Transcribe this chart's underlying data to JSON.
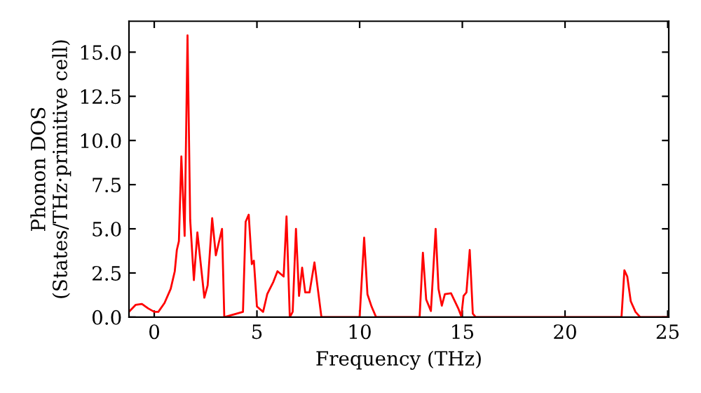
{
  "chart_data": {
    "type": "line",
    "xlabel": "Frequency (THz)",
    "ylabel": "Phonon DOS\n(States/THz·primitive cell)",
    "series": [
      {
        "color": "#ff0000",
        "x": [
          -1.23,
          -0.9,
          -0.6,
          -0.3,
          0.0,
          0.2,
          0.5,
          0.8,
          1.0,
          1.1,
          1.2,
          1.32,
          1.48,
          1.62,
          1.75,
          1.93,
          2.1,
          2.44,
          2.6,
          2.82,
          3.0,
          3.3,
          3.41,
          4.32,
          4.45,
          4.6,
          4.75,
          4.85,
          5.0,
          5.3,
          5.5,
          5.8,
          6.0,
          6.3,
          6.44,
          6.6,
          6.74,
          6.9,
          7.05,
          7.2,
          7.35,
          7.56,
          7.8,
          8.14,
          10.0,
          10.22,
          10.38,
          10.58,
          10.8,
          12.92,
          13.08,
          13.24,
          13.47,
          13.7,
          13.84,
          14.0,
          14.15,
          14.45,
          14.8,
          14.95,
          15.06,
          15.2,
          15.36,
          15.51,
          15.65,
          22.75,
          22.89,
          23.03,
          23.2,
          23.43,
          23.66,
          25.05
        ],
        "values": [
          0.3,
          0.7,
          0.75,
          0.5,
          0.3,
          0.3,
          0.8,
          1.6,
          2.6,
          3.8,
          4.3,
          9.1,
          4.6,
          15.95,
          5.5,
          2.1,
          4.8,
          1.1,
          1.8,
          5.6,
          3.5,
          5.0,
          0.0,
          0.3,
          5.4,
          5.8,
          3.0,
          3.2,
          0.6,
          0.3,
          1.3,
          2.0,
          2.6,
          2.3,
          5.7,
          0.0,
          0.3,
          5.0,
          1.2,
          2.8,
          1.4,
          1.4,
          3.1,
          0.0,
          0.0,
          4.5,
          1.3,
          0.6,
          0.0,
          0.0,
          3.65,
          1.0,
          0.35,
          5.0,
          1.6,
          0.65,
          1.3,
          1.35,
          0.5,
          0.05,
          1.2,
          1.4,
          3.8,
          0.2,
          0.0,
          0.0,
          2.65,
          2.3,
          0.9,
          0.3,
          0.0,
          0.0
        ]
      }
    ],
    "xlim": [
      -1.23,
      25.05
    ],
    "xticks": [
      0,
      5,
      10,
      15,
      20,
      25
    ],
    "ylim": [
      0,
      16.75
    ],
    "yticks": [
      {
        "value": 0,
        "label": "0.0"
      },
      {
        "value": 2.5,
        "label": "2.5"
      },
      {
        "value": 5,
        "label": "5.0"
      },
      {
        "value": 7.5,
        "label": "7.5"
      },
      {
        "value": 10,
        "label": "10.0"
      },
      {
        "value": 12.5,
        "label": "12.5"
      },
      {
        "value": 15,
        "label": "15.0"
      }
    ],
    "grid": false,
    "legend": false
  }
}
